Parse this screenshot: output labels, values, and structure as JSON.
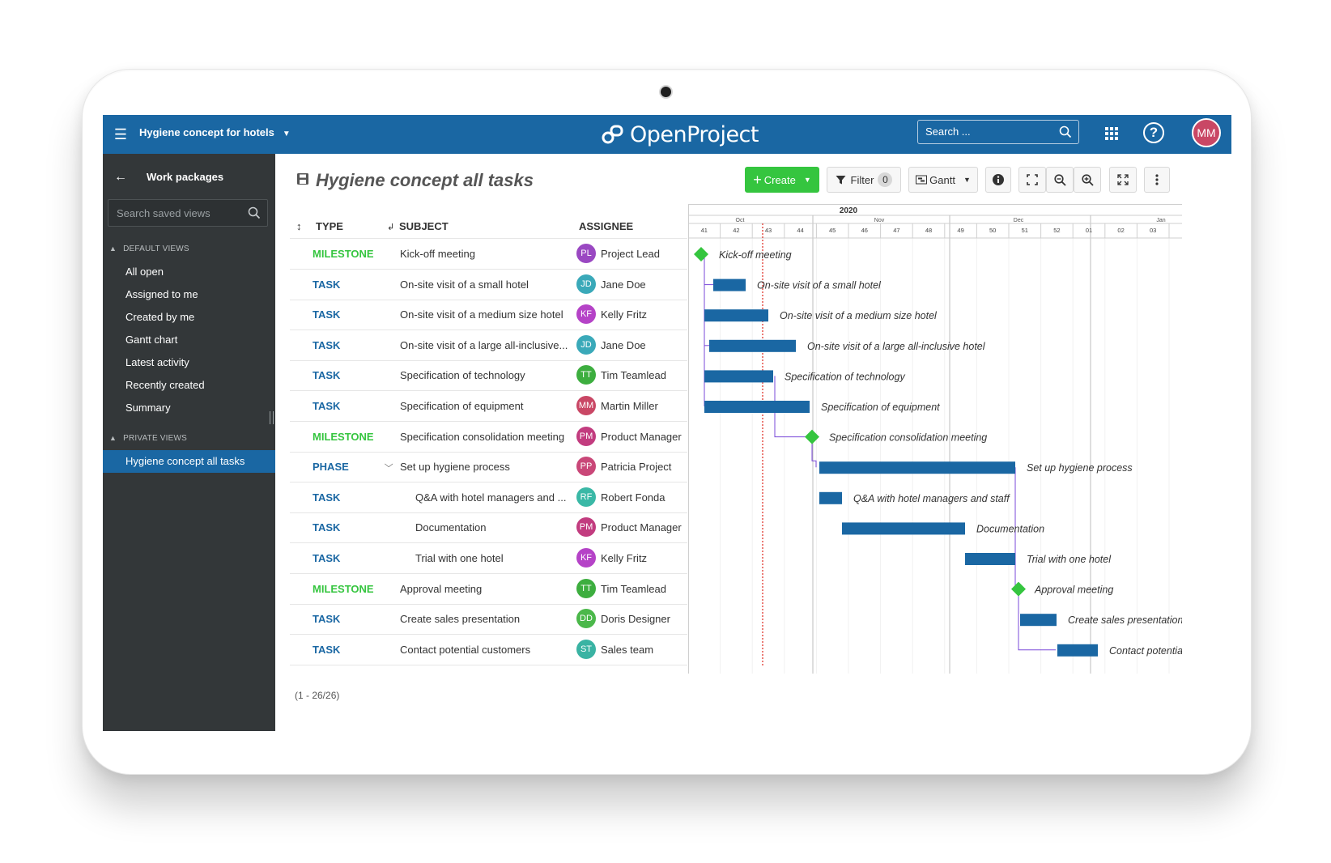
{
  "header": {
    "project": "Hygiene concept for hotels",
    "logo_text": "OpenProject",
    "search_placeholder": "Search ...",
    "user_initials": "MM"
  },
  "sidebar": {
    "title": "Work packages",
    "search_placeholder": "Search saved views",
    "default_group": "DEFAULT VIEWS",
    "default_items": [
      "All open",
      "Assigned to me",
      "Created by me",
      "Gantt chart",
      "Latest activity",
      "Recently created",
      "Summary"
    ],
    "private_group": "PRIVATE VIEWS",
    "private_items": [
      "Hygiene concept all tasks"
    ]
  },
  "toolbar": {
    "title": "Hygiene concept all tasks",
    "create_label": "Create",
    "filter_label": "Filter",
    "filter_count": "0",
    "view_label": "Gantt"
  },
  "table": {
    "columns": {
      "type": "TYPE",
      "subject": "SUBJECT",
      "assignee": "ASSIGNEE"
    },
    "rows": [
      {
        "type": "MILESTONE",
        "subject": "Kick-off meeting",
        "initials": "PL",
        "assignee": "Project Lead",
        "av_color": "#9a48c2"
      },
      {
        "type": "TASK",
        "subject": "On-site visit of a small hotel",
        "initials": "JD",
        "assignee": "Jane Doe",
        "av_color": "#3aa9b9"
      },
      {
        "type": "TASK",
        "subject": "On-site visit of a medium size hotel",
        "initials": "KF",
        "assignee": "Kelly Fritz",
        "av_color": "#b543c7"
      },
      {
        "type": "TASK",
        "subject": "On-site visit of a large all-inclusive...",
        "initials": "JD",
        "assignee": "Jane Doe",
        "av_color": "#3aa9b9"
      },
      {
        "type": "TASK",
        "subject": "Specification of technology",
        "initials": "TT",
        "assignee": "Tim Teamlead",
        "av_color": "#3dae3f"
      },
      {
        "type": "TASK",
        "subject": "Specification of equipment",
        "initials": "MM",
        "assignee": "Martin Miller",
        "av_color": "#c94765"
      },
      {
        "type": "MILESTONE",
        "subject": "Specification consolidation meeting",
        "initials": "PM",
        "assignee": "Product Manager",
        "av_color": "#c23c7f"
      },
      {
        "type": "PHASE",
        "subject": "Set up hygiene process",
        "initials": "PP",
        "assignee": "Patricia Project",
        "av_color": "#c94778"
      },
      {
        "type": "TASK",
        "subject": "Q&A with hotel managers and ...",
        "initials": "RF",
        "assignee": "Robert Fonda",
        "av_color": "#3ab8a6"
      },
      {
        "type": "TASK",
        "subject": "Documentation",
        "initials": "PM",
        "assignee": "Product Manager",
        "av_color": "#c23c7f"
      },
      {
        "type": "TASK",
        "subject": "Trial with one hotel",
        "initials": "KF",
        "assignee": "Kelly Fritz",
        "av_color": "#b543c7"
      },
      {
        "type": "MILESTONE",
        "subject": "Approval meeting",
        "initials": "TT",
        "assignee": "Tim Teamlead",
        "av_color": "#3dae3f"
      },
      {
        "type": "TASK",
        "subject": "Create sales presentation",
        "initials": "DD",
        "assignee": "Doris Designer",
        "av_color": "#4bb84a"
      },
      {
        "type": "TASK",
        "subject": "Contact potential customers",
        "initials": "ST",
        "assignee": "Sales team",
        "av_color": "#3ab3a3"
      }
    ],
    "count_label": "(1 - 26/26)"
  },
  "type_colors": {
    "MILESTONE": "#35c53f",
    "TASK": "#1a67a3",
    "PHASE": "#1a67a3"
  },
  "gantt": {
    "year": "2020",
    "months": [
      "Oct",
      "Nov",
      "Dec",
      "Jan"
    ],
    "weeks": [
      "41",
      "42",
      "43",
      "44",
      "45",
      "46",
      "47",
      "48",
      "49",
      "50",
      "51",
      "52",
      "01",
      "02",
      "03"
    ],
    "labels": [
      "Kick-off meeting",
      "On-site visit of a small hotel",
      "On-site visit of a medium size hotel",
      "On-site visit of a large all-inclusive hotel",
      "Specification of technology",
      "Specification of equipment",
      "Specification consolidation meeting",
      "Set up hygiene process",
      "Q&A with hotel managers and staff",
      "Documentation",
      "Trial with one hotel",
      "Approval meeting",
      "Create sales presentation",
      "Contact potential customers"
    ]
  }
}
